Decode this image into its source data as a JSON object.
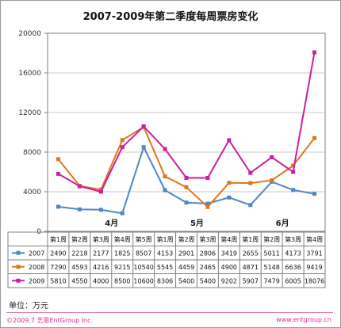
{
  "title": "2007-2009年第二季度每周票房变化",
  "unit_note": "单位：万元",
  "footer": {
    "copyright": "©2009.7 艺恩EntGroup Inc.",
    "website": "www.entgroup.cn"
  },
  "colors": {
    "s2007": "#4f86c6",
    "s2008": "#e0761c",
    "s2009": "#cc1f9e"
  },
  "chart_data": {
    "type": "line",
    "title": "2007-2009年第二季度每周票房变化",
    "ylabel": "",
    "ylim": [
      0,
      20000
    ],
    "yticks": [
      0,
      4000,
      8000,
      12000,
      16000,
      20000
    ],
    "grid": true,
    "categories": [
      "第1周",
      "第2周",
      "第3周",
      "第4周",
      "第5周",
      "第1周",
      "第2周",
      "第3周",
      "第4周",
      "第1周",
      "第2周",
      "第3周",
      "第4周"
    ],
    "month_labels": [
      {
        "label": "4月",
        "index": 2.5
      },
      {
        "label": "5月",
        "index": 6.5
      },
      {
        "label": "6月",
        "index": 10.5
      }
    ],
    "series": [
      {
        "name": "2007",
        "values": [
          2490,
          2218,
          2177,
          1825,
          8507,
          4153,
          2901,
          2806,
          3419,
          2655,
          5011,
          4173,
          3791
        ]
      },
      {
        "name": "2008",
        "values": [
          7290,
          4593,
          4216,
          9215,
          10540,
          5545,
          4459,
          2465,
          4900,
          4871,
          5148,
          6636,
          9419
        ]
      },
      {
        "name": "2009",
        "values": [
          5810,
          4550,
          4000,
          8500,
          10600,
          8306,
          5400,
          5400,
          9202,
          5907,
          7479,
          6005,
          18076
        ]
      }
    ]
  }
}
